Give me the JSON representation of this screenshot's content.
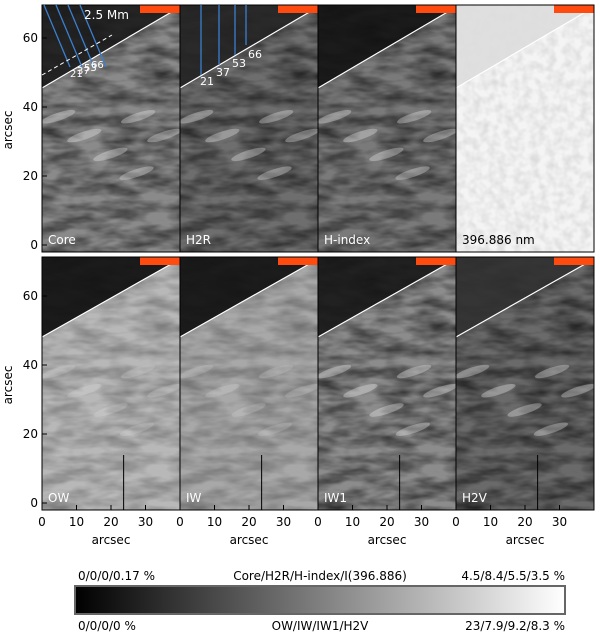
{
  "y_axis_label": "arcsec",
  "x_axis_label": "arcsec",
  "xticks": [
    0,
    10,
    20,
    30
  ],
  "yticks": [
    0,
    20,
    40,
    60
  ],
  "panels": [
    {
      "label": "Core"
    },
    {
      "label": "H2R"
    },
    {
      "label": "H-index"
    },
    {
      "label": "396.886 nm"
    },
    {
      "label": "OW"
    },
    {
      "label": "IW"
    },
    {
      "label": "IW1"
    },
    {
      "label": "H2V"
    }
  ],
  "scale_label": "2.5 Mm",
  "cut_labels": [
    "21",
    "37",
    "53",
    "66"
  ],
  "colorbar": {
    "top_left": "0/0/0/0.17 %",
    "top_center": "Core/H2R/H-index/I(396.886)",
    "top_right": "4.5/8.4/5.5/3.5 %",
    "bottom_left": "0/0/0/0 %",
    "bottom_center": "OW/IW/IW1/H2V",
    "bottom_right": "23/7.9/9.2/8.3 %"
  }
}
